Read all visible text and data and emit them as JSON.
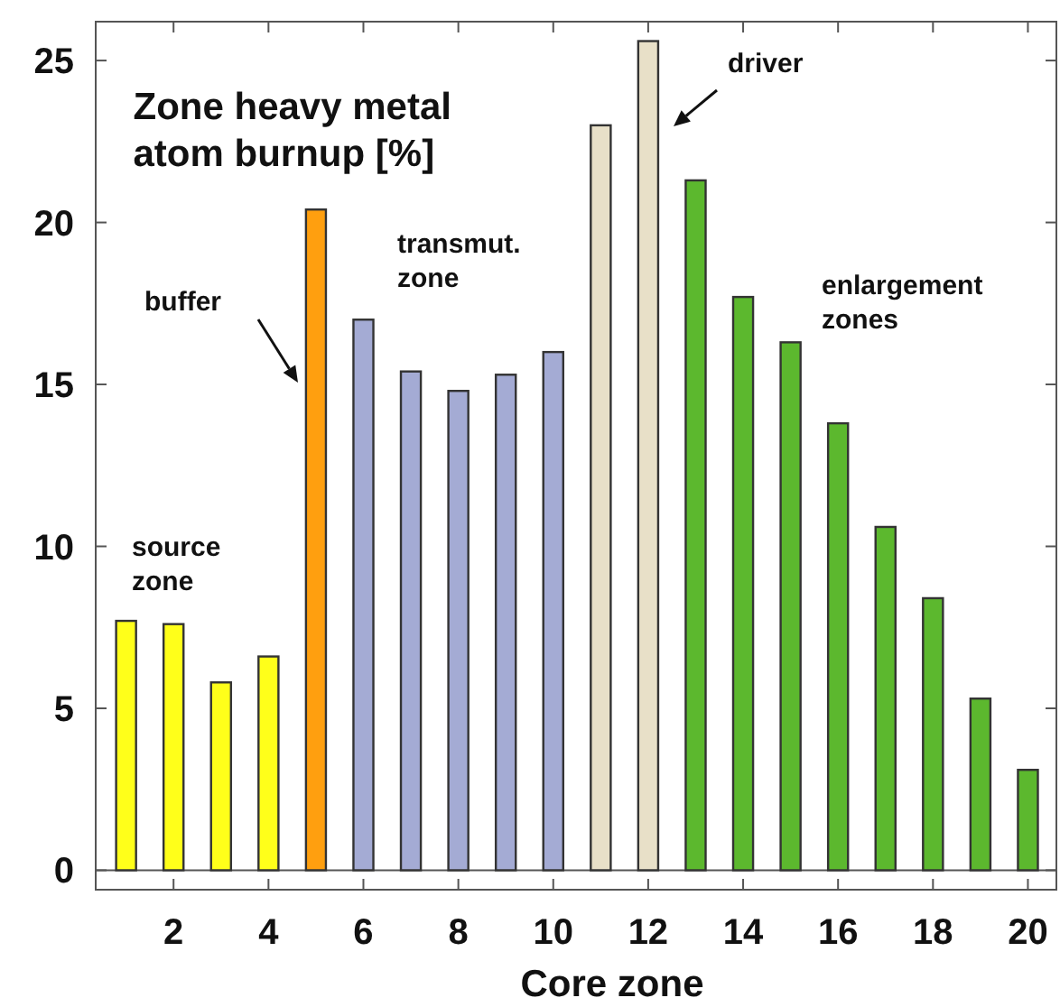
{
  "chart_data": {
    "type": "bar",
    "title": "Zone heavy metal\natom burnup [%]",
    "xlabel": "Core zone",
    "x": [
      1,
      2,
      3,
      4,
      5,
      6,
      7,
      8,
      9,
      10,
      11,
      12,
      13,
      14,
      15,
      16,
      17,
      18,
      19,
      20
    ],
    "values": [
      7.7,
      7.6,
      5.8,
      6.6,
      20.4,
      17.0,
      15.4,
      14.8,
      15.3,
      16.0,
      23.0,
      25.6,
      21.3,
      17.7,
      16.3,
      13.8,
      10.6,
      8.4,
      5.3,
      3.1
    ],
    "colors": [
      "#ffff1a",
      "#ffff1a",
      "#ffff1a",
      "#ffff1a",
      "#ff9f0f",
      "#a4abd4",
      "#a4abd4",
      "#a4abd4",
      "#a4abd4",
      "#a4abd4",
      "#e8e0c8",
      "#e8e0c8",
      "#5cb82e",
      "#5cb82e",
      "#5cb82e",
      "#5cb82e",
      "#5cb82e",
      "#5cb82e",
      "#5cb82e",
      "#5cb82e"
    ],
    "xlim": [
      0.36,
      20.6
    ],
    "xticks": [
      2,
      4,
      6,
      8,
      10,
      12,
      14,
      16,
      18,
      20
    ],
    "ylim": [
      -0.6,
      26.2
    ],
    "yticks": [
      0,
      5,
      10,
      15,
      20,
      25
    ],
    "annotations": [
      "source\nzone",
      "buffer",
      "transmut.\nzone",
      "driver",
      "enlargement\nzones"
    ]
  }
}
